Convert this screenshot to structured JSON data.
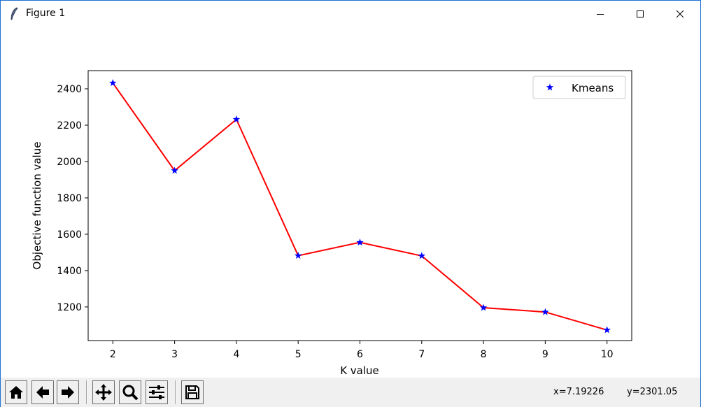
{
  "window": {
    "title": "Figure 1",
    "controls": [
      "minimize",
      "maximize",
      "close"
    ]
  },
  "toolbar": {
    "buttons": [
      {
        "name": "home",
        "icon": "home-icon"
      },
      {
        "name": "back",
        "icon": "arrow-left-icon"
      },
      {
        "name": "forward",
        "icon": "arrow-right-icon"
      },
      {
        "name": "pan",
        "icon": "move-icon"
      },
      {
        "name": "zoom",
        "icon": "magnifier-icon"
      },
      {
        "name": "configure-subplots",
        "icon": "sliders-icon"
      },
      {
        "name": "save",
        "icon": "floppy-disk-icon"
      }
    ],
    "coord_x": "x=7.19226",
    "coord_y": "y=2301.05"
  },
  "chart_data": {
    "type": "line",
    "xlabel": "K value",
    "ylabel": "Objective function value",
    "x": [
      2,
      3,
      4,
      5,
      6,
      7,
      8,
      9,
      10
    ],
    "series": [
      {
        "name": "Kmeans",
        "values": [
          2432,
          1950,
          2232,
          1482,
          1555,
          1481,
          1196,
          1172,
          1073
        ],
        "marker": "star",
        "marker_color": "#0000ff",
        "line_color": "#ff0000"
      }
    ],
    "xlim": [
      1.6,
      10.4
    ],
    "ylim": [
      1015,
      2500
    ],
    "xticks": [
      "2",
      "3",
      "4",
      "5",
      "6",
      "7",
      "8",
      "9",
      "10"
    ],
    "yticks": [
      "1200",
      "1400",
      "1600",
      "1800",
      "2000",
      "2200",
      "2400"
    ],
    "grid": false,
    "legend": {
      "entries": [
        "Kmeans"
      ],
      "placement": "top-right"
    }
  }
}
